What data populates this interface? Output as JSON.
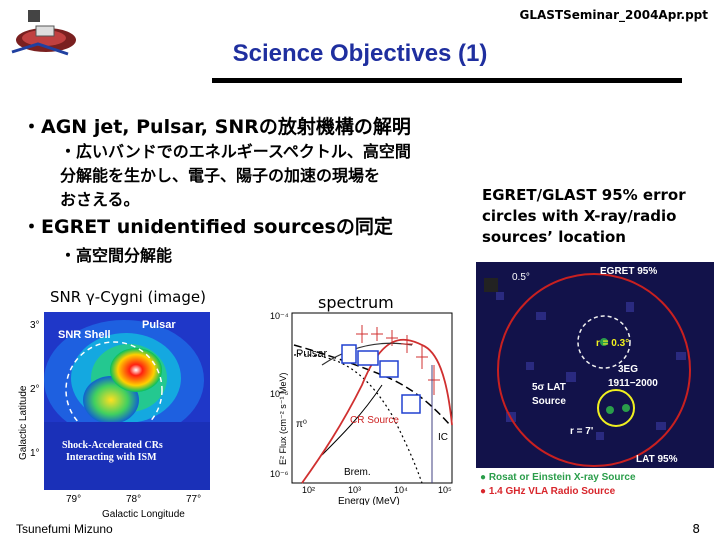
{
  "header": {
    "file_name": "GLASTSeminar_2004Apr.ppt"
  },
  "title": "Science Objectives (1)",
  "bullets": [
    {
      "main": "・AGN jet, Pulsar, SNRの放射機構の解明",
      "sub": [
        "・広いバンドでのエネルギースペクトル、高空間",
        "分解能を生かし、電子、陽子の加速の現場を",
        "おさえる。"
      ]
    },
    {
      "main": "・EGRET unidentified sourcesの同定",
      "sub": [
        "・高空間分解能"
      ]
    }
  ],
  "egret_caption": [
    "EGRET/GLAST 95% error",
    "circles with X-ray/radio",
    "sources’ location"
  ],
  "snr_figure": {
    "label": "SNR γ-Cygni (image)",
    "ylabel": "Galactic Latitude",
    "xlabel": "Galactic Longitude",
    "yticks": [
      "3°",
      "2°",
      "1°"
    ],
    "xticks": [
      "79°",
      "78°",
      "77°"
    ],
    "annotations": {
      "shell": "SNR Shell",
      "pulsar": "Pulsar",
      "shock1": "Shock-Accelerated CRs",
      "shock2": "Interacting with ISM"
    }
  },
  "spectrum_figure": {
    "label": "spectrum",
    "ylabel": "E² Flux (cm⁻² s⁻¹ MeV)",
    "xlabel": "Energy (MeV)",
    "yticks": [
      "10⁻⁴",
      "10⁻⁵",
      "10⁻⁶"
    ],
    "xticks": [
      "10²",
      "10³",
      "10⁴",
      "10⁵"
    ],
    "annotations": {
      "pulsar": "Pulsar",
      "cr": "CR Source",
      "brem": "Brem.",
      "ic": "IC",
      "pi": "π⁰"
    }
  },
  "egret_figure": {
    "scale": "0.5°",
    "egret": "EGRET 95%",
    "r1": "r = 0.3°",
    "src_name": "3EG",
    "src_id": "1911−2000",
    "lat_src1": "5σ LAT",
    "lat_src2": "Source",
    "r2": "r = 7'",
    "lat95": "LAT 95%",
    "legend": [
      "● Rosat or Einstein X-ray Source",
      "● 1.4 GHz VLA Radio Source"
    ],
    "legend_colors": [
      "#2a9d4a",
      "#d8262c"
    ]
  },
  "footer": {
    "author": "Tsunefumi Mizuno",
    "page": "8"
  }
}
